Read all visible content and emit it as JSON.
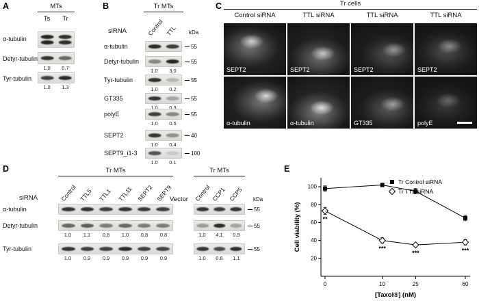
{
  "panel_a": {
    "label": "A",
    "group_header": "MTs",
    "lanes": [
      "Ts",
      "Tr"
    ],
    "rows": [
      {
        "label": "α-tubulin",
        "bands": [
          0.92,
          0.88
        ]
      },
      {
        "label": "Detyr-tubulin",
        "bands": [
          0.85,
          0.6
        ],
        "values": [
          "1.0",
          "0.7"
        ]
      },
      {
        "label": "Tyr-tubulin",
        "bands": [
          0.8,
          0.9
        ],
        "values": [
          "1.0",
          "1.3"
        ]
      }
    ]
  },
  "panel_b": {
    "label": "B",
    "group_header": "Tr MTs",
    "sirna_label": "siRNA",
    "kda_label": "kDa",
    "lanes": [
      "Control",
      "TTL"
    ],
    "rows": [
      {
        "label": "α-tubulin",
        "bands": [
          0.9,
          0.82
        ],
        "marker": "55"
      },
      {
        "label": "Detyr-tubulin",
        "bands": [
          0.45,
          0.92
        ],
        "values": [
          "1.0",
          "3.0"
        ],
        "marker": "55"
      },
      {
        "label": "Tyr-tubulin",
        "bands": [
          0.88,
          0.2
        ],
        "values": [
          "1.0",
          "0.2"
        ],
        "marker": "55"
      },
      {
        "label": "GT335",
        "bands": [
          0.85,
          0.3
        ],
        "values": [
          "1.0",
          "0.3"
        ],
        "marker": "55"
      },
      {
        "label": "polyE",
        "bands": [
          0.8,
          0.45
        ],
        "values": [
          "1.0",
          "0.5"
        ],
        "marker": "55"
      },
      {
        "label": "SEPT2",
        "bands": [
          0.85,
          0.4
        ],
        "values": [
          "1.0",
          "0.4"
        ],
        "marker": "40"
      },
      {
        "label": "SEPT9_i1-3",
        "bands": [
          0.7,
          0.12
        ],
        "values": [
          "1.0",
          "0.1"
        ],
        "marker": "100"
      }
    ]
  },
  "panel_c": {
    "label": "C",
    "group_header": "Tr cells",
    "columns": [
      "Control siRNA",
      "TTL siRNA",
      "TTL siRNA",
      "TTL siRNA"
    ],
    "cells": [
      {
        "stain": "SEPT2",
        "level": 0.8
      },
      {
        "stain": "SEPT2",
        "level": 0.75
      },
      {
        "stain": "SEPT2",
        "level": 0.5
      },
      {
        "stain": "SEPT2",
        "level": 0.45
      },
      {
        "stain": "α-tubulin",
        "level": 0.85
      },
      {
        "stain": "α-tubulin",
        "level": 0.9
      },
      {
        "stain": "GT335",
        "level": 0.55
      },
      {
        "stain": "polyE",
        "level": 0.3
      }
    ]
  },
  "panel_d": {
    "label": "D",
    "sirna_label": "siRNA",
    "vector_label": "Vector",
    "kda_label": "kDa",
    "row_labels": [
      "α-tubulin",
      "Detyr-tubulin",
      "Tyr-tubulin"
    ],
    "left": {
      "group_header": "Tr MTs",
      "lanes": [
        "Control",
        "TTL5",
        "TTL1",
        "TTL11",
        "SEPT2",
        "SEPT9"
      ],
      "rows": [
        {
          "bands": [
            0.85,
            0.85,
            0.8,
            0.85,
            0.82,
            0.8
          ]
        },
        {
          "bands": [
            0.6,
            0.65,
            0.5,
            0.6,
            0.5,
            0.5
          ],
          "values": [
            "1.0",
            "1.1",
            "0.8",
            "1.0",
            "0.8",
            "0.8"
          ]
        },
        {
          "bands": [
            0.85,
            0.8,
            0.8,
            0.9,
            0.8,
            0.78
          ],
          "values": [
            "1.0",
            "0.9",
            "0.9",
            "0.9",
            "0.9",
            "0.9"
          ]
        }
      ]
    },
    "right": {
      "group_header": "Tr MTs",
      "lanes": [
        "Control",
        "CCP1",
        "CCP5"
      ],
      "rows": [
        {
          "bands": [
            0.85,
            0.82,
            0.85
          ],
          "marker": "55"
        },
        {
          "bands": [
            0.35,
            0.9,
            0.3
          ],
          "values": [
            "1.0",
            "4.1",
            "0.9"
          ],
          "marker": "55"
        },
        {
          "bands": [
            0.85,
            0.75,
            0.88
          ],
          "values": [
            "1.0",
            "0.8",
            "1.1"
          ],
          "marker": "55"
        }
      ]
    }
  },
  "panel_e": {
    "label": "E"
  },
  "chart_data": {
    "type": "line",
    "title": "",
    "xlabel": "[Taxol®] (nM)",
    "ylabel": "Cell viability (%)",
    "x": [
      0,
      10,
      25,
      60
    ],
    "xticks": [
      "0",
      "10",
      "25",
      "60"
    ],
    "yticks": [
      20,
      40,
      60,
      80,
      100
    ],
    "ylim": [
      0,
      110
    ],
    "x_scale": "sqrt",
    "grid": false,
    "legend_position": "top-right",
    "series": [
      {
        "name": "Tr Control siRNA",
        "marker": "filled-square",
        "values": [
          98,
          102,
          95,
          65
        ],
        "errors": [
          3,
          2,
          3,
          3
        ]
      },
      {
        "name": "Tr TTL siRNA",
        "marker": "open-diamond",
        "values": [
          73,
          40,
          35,
          38
        ],
        "errors": [
          4,
          3,
          2,
          3
        ]
      }
    ],
    "annotations": [
      {
        "x_index": 0,
        "series_index": 1,
        "text": "**"
      },
      {
        "x_index": 1,
        "series_index": 1,
        "text": "***"
      },
      {
        "x_index": 2,
        "series_index": 1,
        "text": "***"
      },
      {
        "x_index": 3,
        "series_index": 1,
        "text": "***"
      }
    ]
  }
}
